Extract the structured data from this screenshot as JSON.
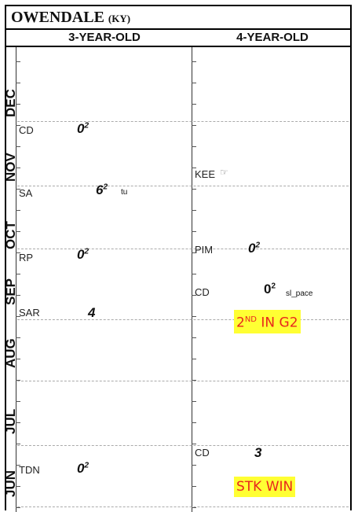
{
  "title": {
    "main": "OWENDALE",
    "location": "(KY)"
  },
  "columns": {
    "three": "3-YEAR-OLD",
    "four": "4-YEAR-OLD"
  },
  "months": [
    "DEC",
    "NOV",
    "OCT",
    "SEP",
    "AUG",
    "JUL",
    "JUN"
  ],
  "three_year_old": [
    {
      "track": "CD",
      "figure": "0",
      "sup": "2"
    },
    {
      "track": "SA",
      "figure": "6",
      "sup": "2",
      "note": "tu"
    },
    {
      "track": "RP",
      "figure": "0",
      "sup": "2"
    },
    {
      "track": "SAR",
      "figure": "4"
    },
    {
      "track": "TDN",
      "figure": "0",
      "sup": "2"
    }
  ],
  "four_year_old": [
    {
      "track": "KEE",
      "icon": "pointing-hand-icon"
    },
    {
      "track": "PIM",
      "figure": "0",
      "sup": "2"
    },
    {
      "track": "CD",
      "figure": "0",
      "sup": "2",
      "note": "sl_pace"
    },
    {
      "highlight": {
        "a": "2",
        "b": "ND",
        "c": " IN G2"
      }
    },
    {
      "track": "CD",
      "figure": "3"
    },
    {
      "highlight": {
        "text": "STK WIN"
      }
    }
  ],
  "colors": {
    "highlight_bg": "#ffff33",
    "highlight_text": "#e8261c"
  }
}
